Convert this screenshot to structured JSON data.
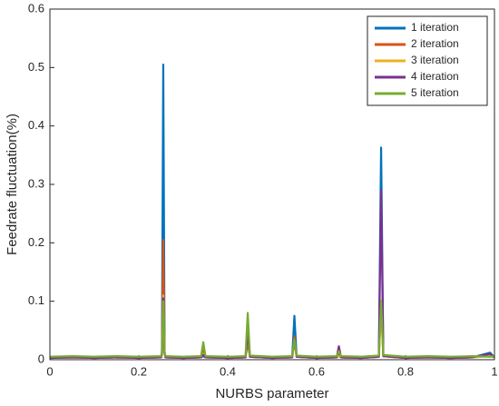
{
  "chart_data": {
    "type": "line",
    "xlabel": "NURBS parameter",
    "ylabel": "Feedrate fluctuation(%)",
    "xlim": [
      0,
      1
    ],
    "xticks": [
      0,
      0.2,
      0.4,
      0.6,
      0.8,
      1
    ],
    "ylim": [
      0,
      0.6
    ],
    "yticks": [
      0,
      0.1,
      0.2,
      0.3,
      0.4,
      0.5,
      0.6
    ],
    "legend": "northeast",
    "x": [
      0,
      0.05,
      0.1,
      0.15,
      0.2,
      0.25,
      0.252,
      0.255,
      0.258,
      0.26,
      0.3,
      0.34,
      0.345,
      0.35,
      0.4,
      0.44,
      0.445,
      0.45,
      0.5,
      0.545,
      0.55,
      0.555,
      0.6,
      0.645,
      0.65,
      0.655,
      0.7,
      0.74,
      0.745,
      0.75,
      0.8,
      0.85,
      0.9,
      0.95,
      0.99,
      1
    ],
    "series": [
      {
        "name": "1 iteration",
        "color": "#0072BD",
        "values": [
          0.003,
          0.004,
          0.003,
          0.004,
          0.003,
          0.004,
          0.01,
          0.505,
          0.012,
          0.004,
          0.003,
          0.004,
          0.006,
          0.004,
          0.003,
          0.004,
          0.05,
          0.005,
          0.003,
          0.004,
          0.075,
          0.005,
          0.003,
          0.004,
          0.008,
          0.004,
          0.003,
          0.005,
          0.363,
          0.006,
          0.003,
          0.004,
          0.003,
          0.004,
          0.012,
          0.004
        ]
      },
      {
        "name": "2 iteration",
        "color": "#D95319",
        "values": [
          0.003,
          0.004,
          0.003,
          0.004,
          0.003,
          0.004,
          0.01,
          0.205,
          0.012,
          0.004,
          0.003,
          0.004,
          0.017,
          0.004,
          0.003,
          0.004,
          0.03,
          0.005,
          0.003,
          0.004,
          0.04,
          0.005,
          0.003,
          0.004,
          0.006,
          0.004,
          0.003,
          0.005,
          0.1,
          0.006,
          0.003,
          0.004,
          0.003,
          0.004,
          0.008,
          0.004
        ]
      },
      {
        "name": "3 iteration",
        "color": "#EDB120",
        "values": [
          0.003,
          0.004,
          0.003,
          0.004,
          0.003,
          0.004,
          0.01,
          0.11,
          0.012,
          0.004,
          0.003,
          0.004,
          0.01,
          0.004,
          0.003,
          0.004,
          0.04,
          0.005,
          0.003,
          0.004,
          0.03,
          0.005,
          0.003,
          0.004,
          0.006,
          0.004,
          0.003,
          0.005,
          0.09,
          0.006,
          0.003,
          0.004,
          0.003,
          0.004,
          0.006,
          0.004
        ]
      },
      {
        "name": "4 iteration",
        "color": "#7E2F8E",
        "values": [
          0.003,
          0.004,
          0.003,
          0.004,
          0.003,
          0.004,
          0.01,
          0.105,
          0.012,
          0.004,
          0.003,
          0.004,
          0.008,
          0.004,
          0.003,
          0.004,
          0.045,
          0.005,
          0.003,
          0.004,
          0.035,
          0.005,
          0.003,
          0.004,
          0.023,
          0.004,
          0.003,
          0.005,
          0.29,
          0.006,
          0.003,
          0.004,
          0.003,
          0.004,
          0.01,
          0.004
        ]
      },
      {
        "name": "5 iteration",
        "color": "#77AC30",
        "values": [
          0.005,
          0.006,
          0.005,
          0.006,
          0.005,
          0.006,
          0.012,
          0.1,
          0.014,
          0.006,
          0.005,
          0.006,
          0.03,
          0.006,
          0.005,
          0.006,
          0.08,
          0.007,
          0.005,
          0.006,
          0.035,
          0.007,
          0.005,
          0.006,
          0.015,
          0.006,
          0.005,
          0.007,
          0.1,
          0.008,
          0.005,
          0.006,
          0.005,
          0.006,
          0.005,
          0.006
        ]
      }
    ]
  }
}
